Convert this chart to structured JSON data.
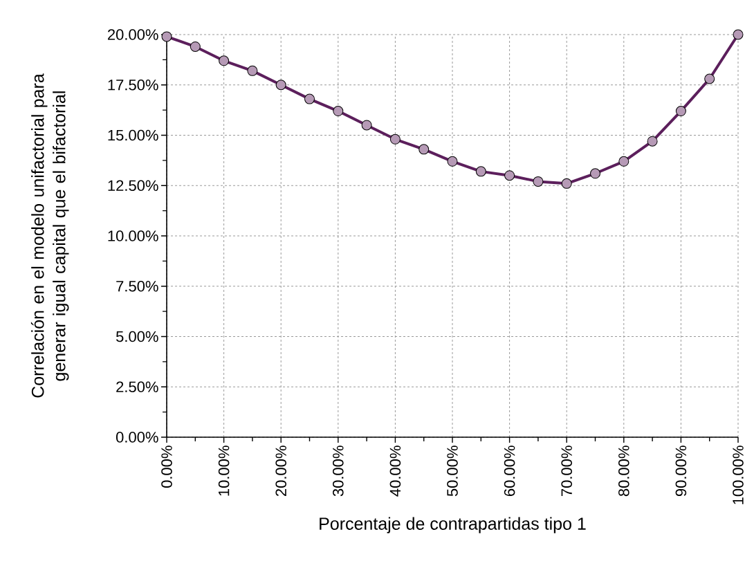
{
  "chart_data": {
    "type": "line",
    "xlabel": "Porcentaje de contrapartidas tipo 1",
    "ylabel": "Correlación en el modelo unifactorial para generar igual capital que el bifactorial",
    "x": [
      0,
      5,
      10,
      15,
      20,
      25,
      30,
      35,
      40,
      45,
      50,
      55,
      60,
      65,
      70,
      75,
      80,
      85,
      90,
      95,
      100
    ],
    "series": [
      {
        "color": "#5c1f5c",
        "values": [
          19.9,
          19.4,
          18.7,
          18.2,
          17.5,
          16.8,
          16.2,
          15.5,
          14.8,
          14.3,
          13.7,
          13.2,
          13.0,
          12.7,
          12.6,
          13.1,
          13.7,
          14.7,
          16.2,
          17.8,
          20.0
        ]
      }
    ],
    "xlim": [
      0,
      100
    ],
    "ylim": [
      0,
      20
    ],
    "xticks": [
      {
        "value": 0,
        "label": "0.00%"
      },
      {
        "value": 5,
        "label": null
      },
      {
        "value": 10,
        "label": "10.00%"
      },
      {
        "value": 15,
        "label": null
      },
      {
        "value": 20,
        "label": "20.00%"
      },
      {
        "value": 25,
        "label": null
      },
      {
        "value": 30,
        "label": "30.00%"
      },
      {
        "value": 35,
        "label": null
      },
      {
        "value": 40,
        "label": "40.00%"
      },
      {
        "value": 45,
        "label": null
      },
      {
        "value": 50,
        "label": "50.00%"
      },
      {
        "value": 55,
        "label": null
      },
      {
        "value": 60,
        "label": "60.00%"
      },
      {
        "value": 65,
        "label": null
      },
      {
        "value": 70,
        "label": "70.00%"
      },
      {
        "value": 75,
        "label": null
      },
      {
        "value": 80,
        "label": "80.00%"
      },
      {
        "value": 85,
        "label": null
      },
      {
        "value": 90,
        "label": "90.00%"
      },
      {
        "value": 95,
        "label": null
      },
      {
        "value": 100,
        "label": "100.00%"
      }
    ],
    "yticks": [
      {
        "value": 0,
        "label": "0.00%"
      },
      {
        "value": 1.25,
        "label": null
      },
      {
        "value": 2.5,
        "label": "2.50%"
      },
      {
        "value": 3.75,
        "label": null
      },
      {
        "value": 5,
        "label": "5.00%"
      },
      {
        "value": 6.25,
        "label": null
      },
      {
        "value": 7.5,
        "label": "7.50%"
      },
      {
        "value": 8.75,
        "label": null
      },
      {
        "value": 10,
        "label": "10.00%"
      },
      {
        "value": 11.25,
        "label": null
      },
      {
        "value": 12.5,
        "label": "12.50%"
      },
      {
        "value": 13.75,
        "label": null
      },
      {
        "value": 15,
        "label": "15.00%"
      },
      {
        "value": 16.25,
        "label": null
      },
      {
        "value": 17.5,
        "label": "17.50%"
      },
      {
        "value": 18.75,
        "label": null
      },
      {
        "value": 20,
        "label": "20.00%"
      }
    ],
    "grid": true,
    "marker": "circle",
    "line_style": "solid"
  }
}
